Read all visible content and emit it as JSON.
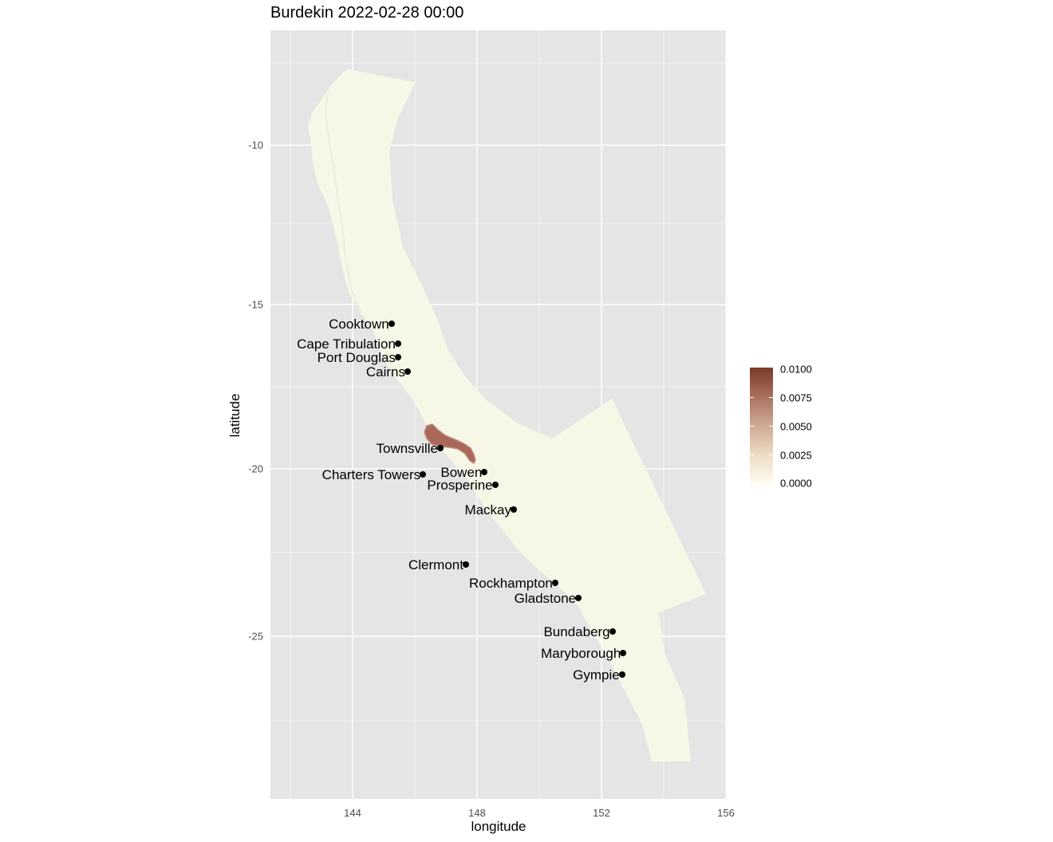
{
  "title": "Burdekin 2022-02-28 00:00",
  "x_axis": {
    "label": "longitude",
    "ticks": [
      "144",
      "148",
      "152",
      "156"
    ]
  },
  "y_axis": {
    "label": "latitude",
    "ticks": [
      "-10",
      "-15",
      "-20",
      "-25"
    ]
  },
  "legend": {
    "labels": [
      "0.0100",
      "0.0075",
      "0.0050",
      "0.0025",
      "0.0000"
    ],
    "colors": {
      "low": "#fffdf0",
      "high": "#7a3a2a"
    }
  },
  "colors": {
    "panel": "#e5e5e5",
    "grid": "#ffffff",
    "sea": "#f7f7e8",
    "plume": "#a9685a"
  },
  "chart_data": {
    "type": "map",
    "title": "Burdekin 2022-02-28 00:00",
    "xlabel": "longitude",
    "ylabel": "latitude",
    "xlim": [
      141.3,
      156.0
    ],
    "ylim": [
      -30.2,
      -6.5
    ],
    "fill_range": [
      0.0,
      0.01
    ],
    "cities": [
      {
        "name": "Cooktown",
        "lon": 145.25,
        "lat": -15.47
      },
      {
        "name": "Cape Tribulation",
        "lon": 145.46,
        "lat": -16.08
      },
      {
        "name": "Port Douglas",
        "lon": 145.46,
        "lat": -16.48
      },
      {
        "name": "Cairns",
        "lon": 145.77,
        "lat": -16.92
      },
      {
        "name": "Townsville",
        "lon": 146.82,
        "lat": -19.26
      },
      {
        "name": "Charters Towers",
        "lon": 146.26,
        "lat": -20.07
      },
      {
        "name": "Bowen",
        "lon": 148.24,
        "lat": -20.01
      },
      {
        "name": "Prosperine",
        "lon": 148.58,
        "lat": -20.4
      },
      {
        "name": "Mackay",
        "lon": 149.18,
        "lat": -21.14
      },
      {
        "name": "Clermont",
        "lon": 147.64,
        "lat": -22.82
      },
      {
        "name": "Rockhampton",
        "lon": 150.51,
        "lat": -23.38
      },
      {
        "name": "Gladstone",
        "lon": 151.26,
        "lat": -23.85
      },
      {
        "name": "Bundaberg",
        "lon": 152.35,
        "lat": -24.87
      },
      {
        "name": "Maryborough",
        "lon": 152.7,
        "lat": -25.54
      },
      {
        "name": "Gympie",
        "lon": 152.66,
        "lat": -26.19
      }
    ]
  }
}
